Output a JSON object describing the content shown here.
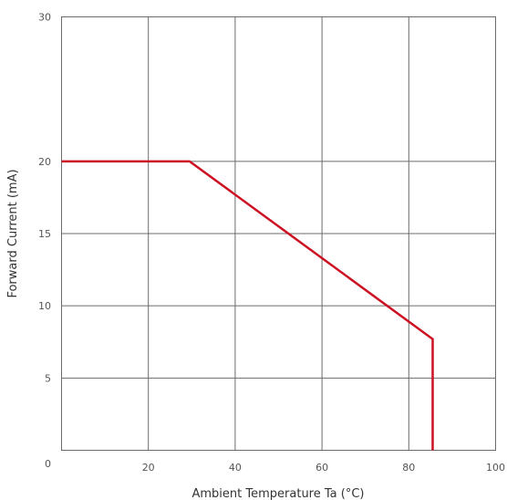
{
  "chart_data": {
    "type": "line",
    "title": "",
    "xlabel": "Ambient Temperature Ta (°C)",
    "ylabel": "Forward Current (mA)",
    "xlim": [
      0,
      100
    ],
    "ylim": [
      0,
      30
    ],
    "xticks": [
      20,
      40,
      60,
      80,
      100
    ],
    "yticks": [
      5,
      10,
      15,
      20,
      30
    ],
    "origin_label": "0",
    "grid": true,
    "legend": "none",
    "series": [
      {
        "color": "#cc1122",
        "x": [
          0,
          29.5,
          85.5,
          85.5
        ],
        "y": [
          20,
          20,
          7.7,
          0
        ]
      }
    ]
  }
}
